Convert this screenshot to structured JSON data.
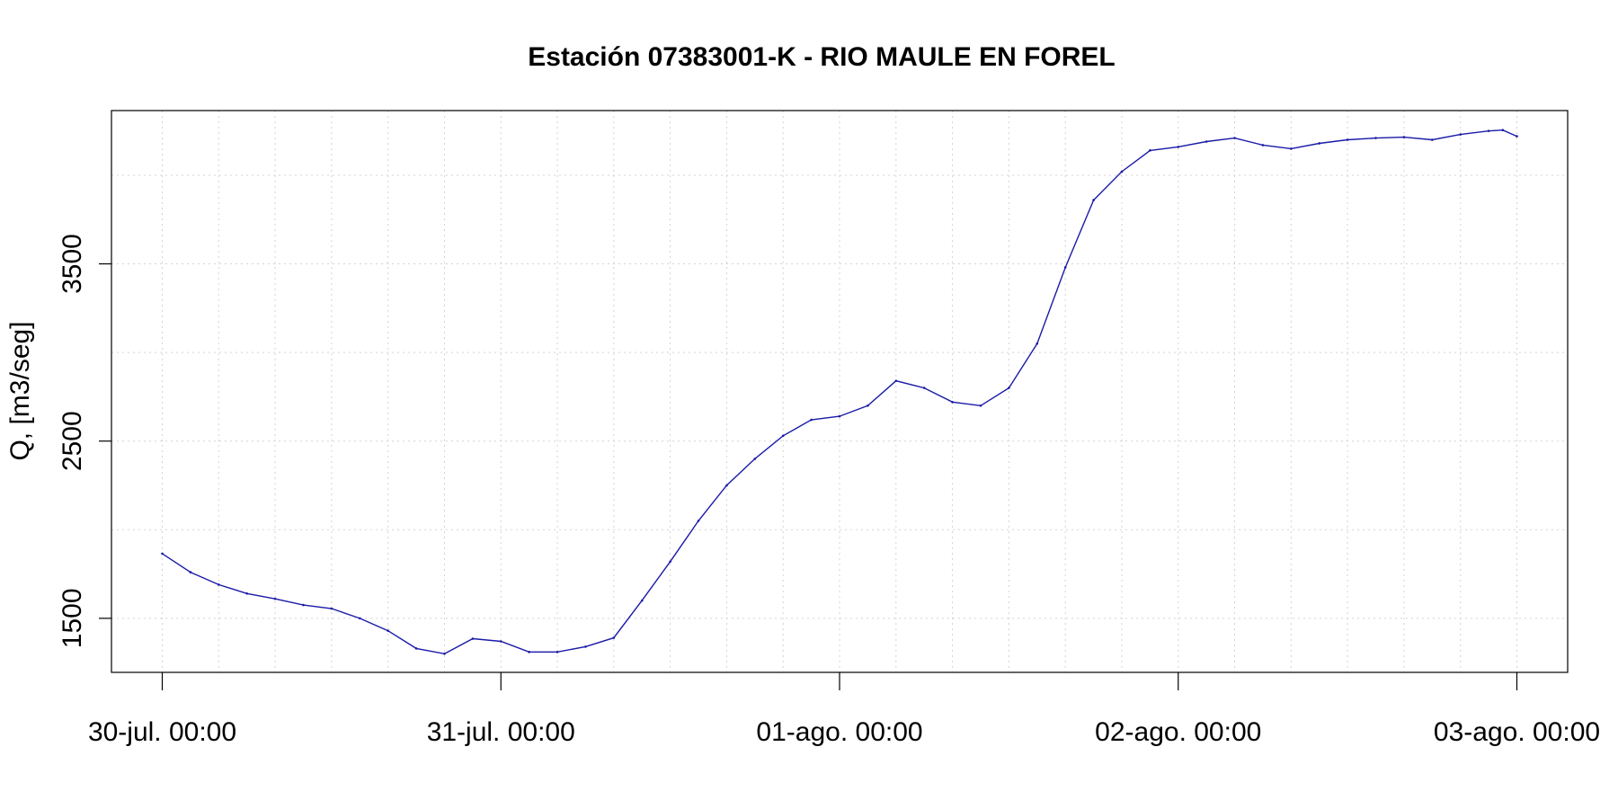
{
  "chart_data": {
    "type": "line",
    "title": "Estación 07383001-K - RIO MAULE EN FOREL",
    "ylabel": "Q, [m3/seg]",
    "xlabel": "",
    "x_tick_labels": [
      "30-jul. 00:00",
      "31-jul. 00:00",
      "01-ago. 00:00",
      "02-ago. 00:00",
      "03-ago. 00:00"
    ],
    "y_ticks": [
      1500,
      2500,
      3500
    ],
    "y_gridlines": [
      1500,
      2000,
      2500,
      3000,
      3500,
      4000
    ],
    "xlim_days": [
      -0.15,
      4.15
    ],
    "ylim": [
      1195,
      4365
    ],
    "grid": true,
    "line_color": "#1a1aa8",
    "series": [
      {
        "x_days": [
          0,
          0.0833,
          0.1667,
          0.25,
          0.3333,
          0.4167,
          0.5,
          0.5833,
          0.6667,
          0.75,
          0.8333,
          0.9167,
          1.0,
          1.0833,
          1.1667,
          1.25,
          1.3333,
          1.4167,
          1.5,
          1.5833,
          1.6667,
          1.75,
          1.8333,
          1.9167,
          2.0,
          2.0833,
          2.1667,
          2.25,
          2.3333,
          2.4167,
          2.5,
          2.5833,
          2.6667,
          2.75,
          2.8333,
          2.9167,
          3.0,
          3.0833,
          3.1667,
          3.25,
          3.3333,
          3.4167,
          3.5,
          3.5833,
          3.6667,
          3.75,
          3.8333,
          3.9167,
          3.9583,
          4.0
        ],
        "values": [
          1865,
          1760,
          1690,
          1640,
          1610,
          1575,
          1555,
          1500,
          1430,
          1330,
          1300,
          1385,
          1370,
          1310,
          1310,
          1340,
          1390,
          1600,
          1820,
          2050,
          2250,
          2400,
          2530,
          2620,
          2640,
          2700,
          2840,
          2800,
          2720,
          2700,
          2800,
          3050,
          3480,
          3860,
          4020,
          4140,
          4160,
          4190,
          4210,
          4170,
          4150,
          4180,
          4200,
          4210,
          4215,
          4200,
          4230,
          4250,
          4255,
          4220
        ]
      }
    ]
  }
}
